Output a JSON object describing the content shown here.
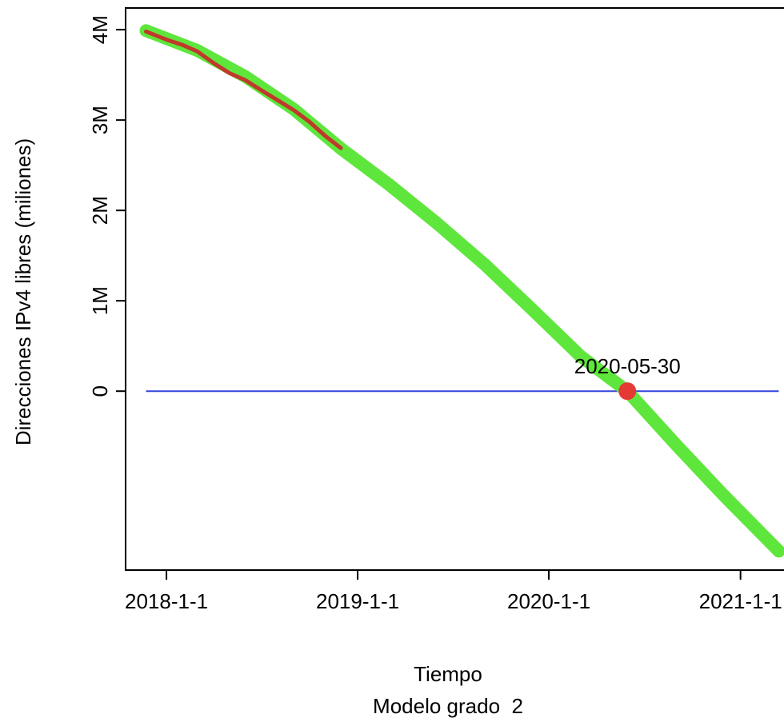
{
  "chart_data": {
    "type": "line",
    "xlabel": "Tiempo",
    "subtitle": "Modelo grado  2",
    "ylabel": "Direcciones IPv4 libres (miliones)",
    "x_ticks": [
      {
        "value": "2018-01-01",
        "label": "2018-1-1"
      },
      {
        "value": "2019-01-01",
        "label": "2019-1-1"
      },
      {
        "value": "2020-01-01",
        "label": "2020-1-1"
      },
      {
        "value": "2021-01-01",
        "label": "2021-1-1"
      }
    ],
    "y_ticks": [
      {
        "value": 0,
        "label": "0"
      },
      {
        "value": 1000000,
        "label": "1M"
      },
      {
        "value": 2000000,
        "label": "2M"
      },
      {
        "value": 3000000,
        "label": "3M"
      },
      {
        "value": 4000000,
        "label": "4M"
      }
    ],
    "xlim": [
      "2017-10-15",
      "2021-03-25"
    ],
    "ylim": [
      -1980000,
      4240000
    ],
    "series": [
      {
        "color": "#5ee63c",
        "points": [
          [
            "2017-11-23",
            3990000
          ],
          [
            "2018-03-01",
            3770000
          ],
          [
            "2018-06-01",
            3480000
          ],
          [
            "2018-09-01",
            3120000
          ],
          [
            "2018-12-01",
            2680000
          ],
          [
            "2019-03-01",
            2290000
          ],
          [
            "2019-06-01",
            1860000
          ],
          [
            "2019-09-01",
            1400000
          ],
          [
            "2019-12-01",
            900000
          ],
          [
            "2020-03-01",
            390000
          ],
          [
            "2020-05-30",
            0
          ],
          [
            "2020-09-01",
            -600000
          ],
          [
            "2020-12-01",
            -1160000
          ],
          [
            "2021-03-15",
            -1770000
          ]
        ]
      },
      {
        "color": "#c0392b",
        "points": [
          [
            "2017-11-23",
            3980000
          ],
          [
            "2018-01-01",
            3890000
          ],
          [
            "2018-02-01",
            3830000
          ],
          [
            "2018-03-01",
            3760000
          ],
          [
            "2018-04-01",
            3630000
          ],
          [
            "2018-05-01",
            3520000
          ],
          [
            "2018-06-01",
            3440000
          ],
          [
            "2018-07-01",
            3330000
          ],
          [
            "2018-08-01",
            3220000
          ],
          [
            "2018-09-01",
            3110000
          ],
          [
            "2018-10-01",
            2980000
          ],
          [
            "2018-11-01",
            2820000
          ],
          [
            "2018-11-30",
            2690000
          ]
        ]
      }
    ],
    "reference_line": {
      "y": 0,
      "color": "#3344dd",
      "x_from": "2017-11-23",
      "x_to": "2021-03-15"
    },
    "marker": {
      "x": "2020-05-30",
      "y": 0,
      "label": "2020-05-30",
      "color": "#e53935"
    },
    "grid": false,
    "legend": "none"
  }
}
